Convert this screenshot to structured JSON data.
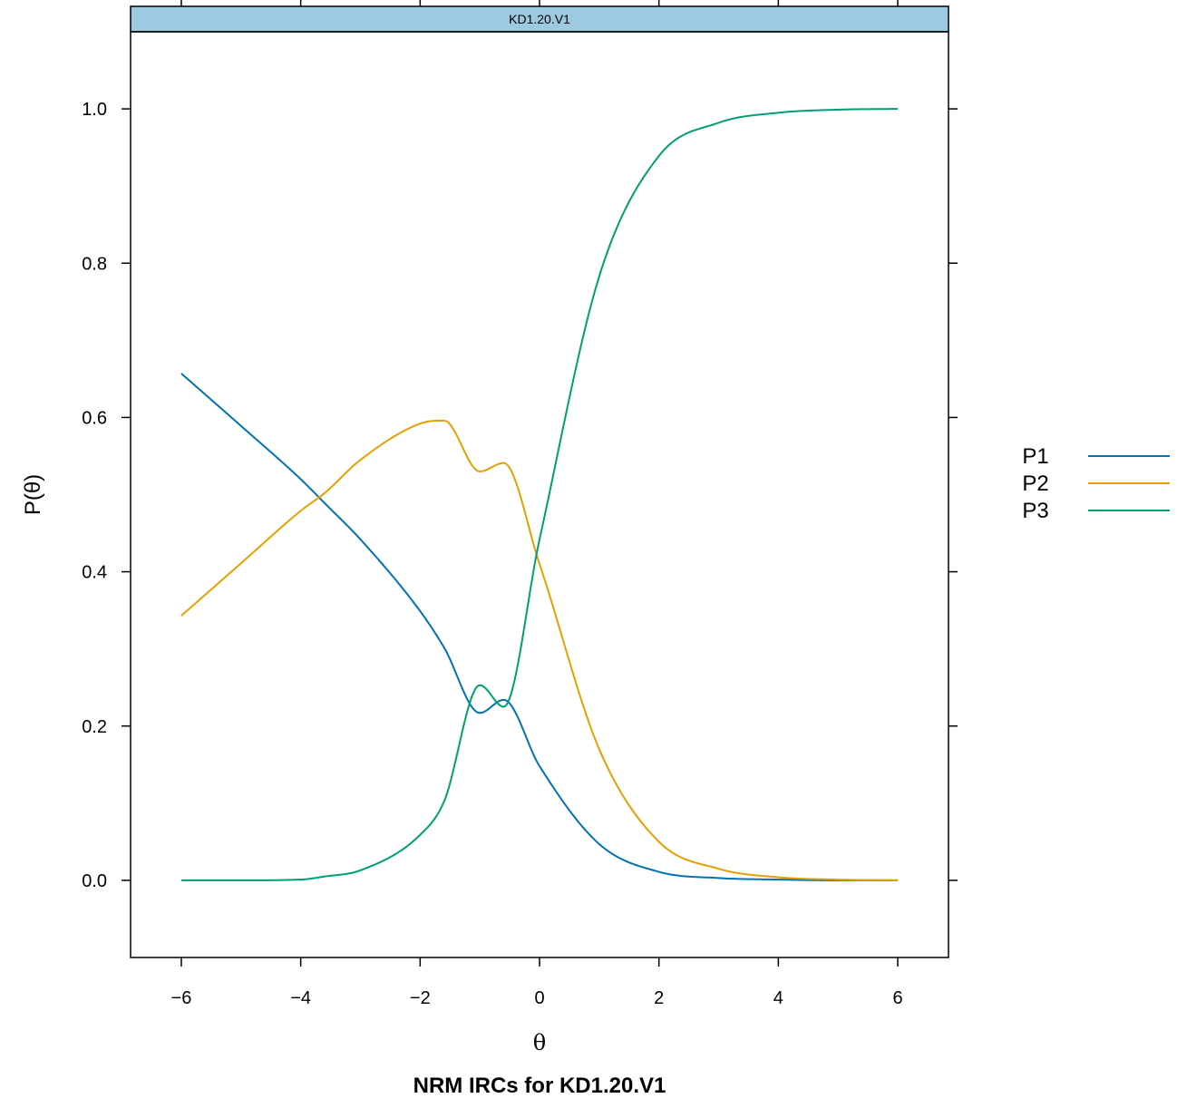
{
  "chart_data": {
    "type": "line",
    "strip_title": "KD1.20.V1",
    "title": "NRM IRCs for KD1.20.V1",
    "xlabel": "θ",
    "ylabel": "P(θ)",
    "xlim": [
      -6.85,
      6.85
    ],
    "ylim": [
      -0.1,
      1.1
    ],
    "xticks": [
      -6,
      -4,
      -2,
      0,
      2,
      4,
      6
    ],
    "xtick_labels": [
      "−6",
      "−4",
      "−2",
      "0",
      "2",
      "4",
      "6"
    ],
    "yticks": [
      0.0,
      0.2,
      0.4,
      0.6,
      0.8,
      1.0
    ],
    "ytick_labels": [
      "0.0",
      "0.2",
      "0.4",
      "0.6",
      "0.8",
      "1.0"
    ],
    "grid": false,
    "legend_position": "right",
    "x": [
      -6,
      -5,
      -4,
      -3.6,
      -3,
      -2,
      -1.6,
      -1,
      -0.6,
      0,
      1,
      2,
      3,
      4,
      5,
      6
    ],
    "series": [
      {
        "name": "P1",
        "color": "#0072B2",
        "values": [
          0.657,
          0.589,
          0.52,
          0.489,
          0.442,
          0.349,
          0.302,
          0.217,
          0.234,
          0.148,
          0.047,
          0.011,
          0.003,
          0.001,
          0.0,
          0.0
        ]
      },
      {
        "name": "P2",
        "color": "#E69F00",
        "values": [
          0.343,
          0.411,
          0.479,
          0.502,
          0.545,
          0.592,
          0.596,
          0.53,
          0.541,
          0.41,
          0.17,
          0.05,
          0.015,
          0.004,
          0.001,
          0.0
        ]
      },
      {
        "name": "P3",
        "color": "#009E73",
        "values": [
          0.0,
          0.0,
          0.001,
          0.005,
          0.013,
          0.059,
          0.102,
          0.253,
          0.225,
          0.442,
          0.783,
          0.939,
          0.982,
          0.995,
          0.999,
          1.0
        ]
      }
    ]
  },
  "strip": {
    "color": "#9ECAE1"
  }
}
